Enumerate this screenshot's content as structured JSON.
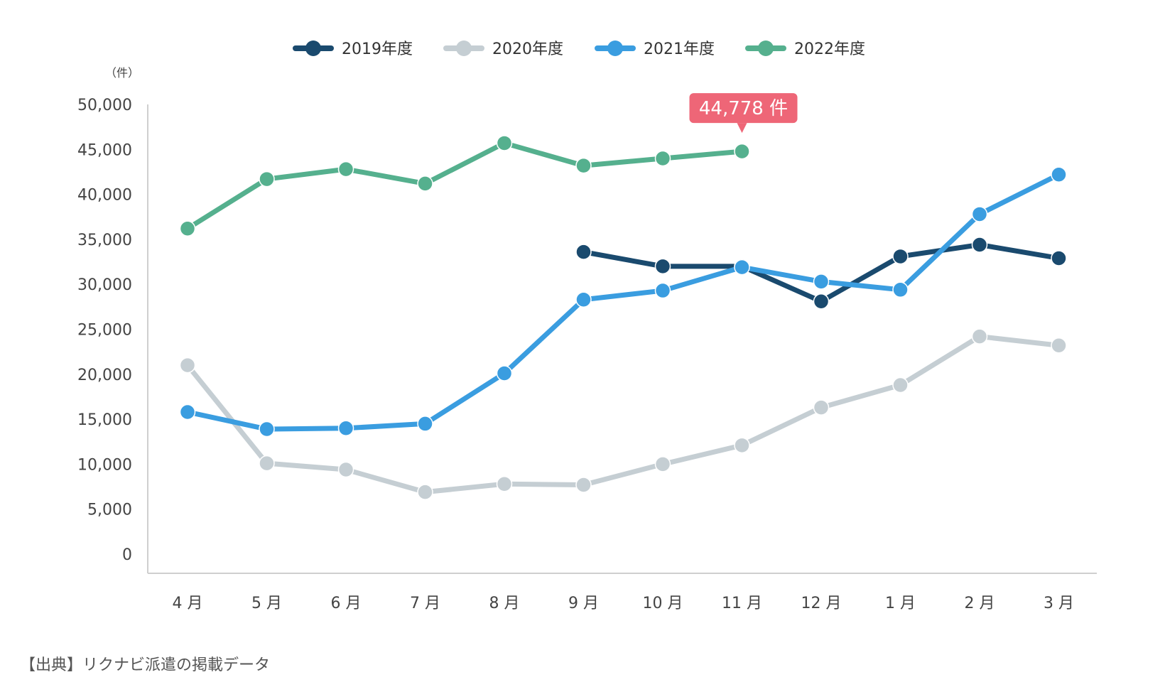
{
  "chart_data": {
    "type": "line",
    "unit_label": "（件）",
    "categories": [
      "4 月",
      "5 月",
      "6 月",
      "7 月",
      "8 月",
      "9 月",
      "10 月",
      "11 月",
      "12 月",
      "1 月",
      "2 月",
      "3 月"
    ],
    "ylim": [
      0,
      50000
    ],
    "y_ticks": [
      0,
      5000,
      10000,
      15000,
      20000,
      25000,
      30000,
      35000,
      40000,
      45000,
      50000
    ],
    "y_tick_labels": [
      "0",
      "5,000",
      "10,000",
      "15,000",
      "20,000",
      "25,000",
      "30,000",
      "35,000",
      "40,000",
      "45,000",
      "50,000"
    ],
    "grid": false,
    "legend_position": "top",
    "series": [
      {
        "name": "2019年度",
        "color": "#1a4a6e",
        "values": [
          null,
          null,
          null,
          null,
          null,
          33600,
          32000,
          32000,
          28100,
          33100,
          34400,
          32900
        ]
      },
      {
        "name": "2020年度",
        "color": "#c5ced3",
        "values": [
          21000,
          10100,
          9400,
          6900,
          7800,
          7700,
          10000,
          12100,
          16300,
          18800,
          24200,
          23200
        ]
      },
      {
        "name": "2021年度",
        "color": "#3a9de0",
        "values": [
          15800,
          13900,
          14000,
          14500,
          20100,
          28300,
          29300,
          31900,
          30300,
          29400,
          37800,
          42200
        ]
      },
      {
        "name": "2022年度",
        "color": "#55b08e",
        "values": [
          36200,
          41700,
          42800,
          41200,
          45700,
          43200,
          44000,
          44778,
          null,
          null,
          null,
          null
        ]
      }
    ],
    "annotation": {
      "text": "44,778 件",
      "series": "2022年度",
      "category": "11 月",
      "color": "#ee6677"
    }
  },
  "source_note": "【出典】リクナビ派遣の掲載データ"
}
